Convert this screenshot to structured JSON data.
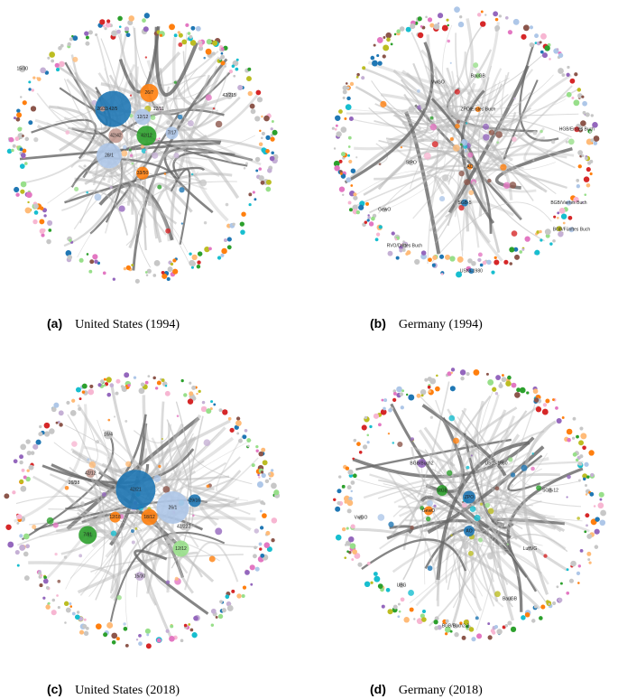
{
  "panels": [
    {
      "label": "(a)",
      "title": "United States (1994)",
      "nodes": [
        "42/5",
        "26/7",
        "12/12",
        "42/42",
        "28/1",
        "33/50",
        "7/17",
        "42/12",
        "15/30",
        "12/11",
        "26/33",
        "42/215"
      ]
    },
    {
      "label": "(b)",
      "title": "Germany (1994)",
      "nodes": [
        "BGB/Viertes Buch",
        "ZPO/Erstes Buch",
        "HGB/Erstes Buch",
        "BGB/Fünftes Buch",
        "VwGO",
        "AO",
        "GewO",
        "UStG-1980",
        "SGB-5",
        "StPO",
        "BauGB",
        "RVO/Drittes Buch"
      ]
    },
    {
      "label": "(c)",
      "title": "United States (2018)",
      "nodes": [
        "42/21",
        "26/1",
        "7/81",
        "12/12",
        "15/30",
        "29/16",
        "42/12",
        "16/4",
        "42/223",
        "12/18",
        "18/12",
        "26/38"
      ]
    },
    {
      "label": "(d)",
      "title": "Germany (2018)",
      "nodes": [
        "BGB/Buch2",
        "ZPO",
        "UStG-1980",
        "LuftVG",
        "GewO",
        "SGB-12",
        "BGB/Buch2-2",
        "UBG",
        "AO",
        "StGB",
        "VwGO",
        "BauGB"
      ]
    }
  ]
}
